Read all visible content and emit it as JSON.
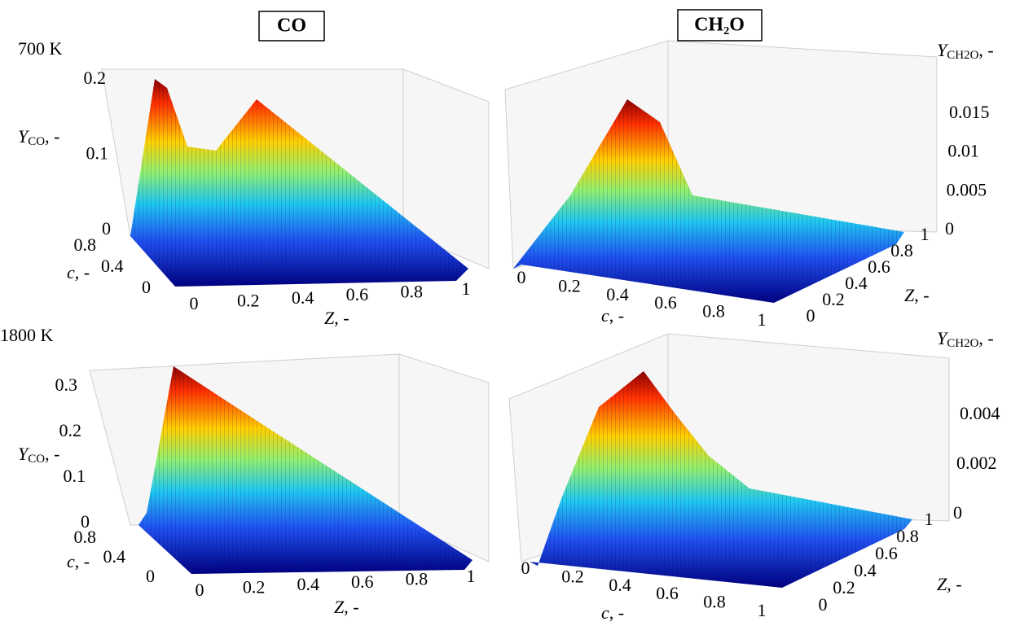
{
  "headers": [
    "CO",
    "CH₂O"
  ],
  "row_labels": [
    "700 K",
    "1800 K"
  ],
  "panels": [
    {
      "y_label": {
        "symbol": "Y",
        "subscript": "CO",
        "unit": ", -"
      },
      "y_ticks": [
        0,
        0.1,
        0.2
      ],
      "c_label": {
        "symbol": "c",
        "unit": ", -"
      },
      "c_ticks": [
        0,
        0.4,
        0.8
      ],
      "z_label": {
        "symbol": "Z",
        "unit": ", -"
      },
      "z_ticks": [
        0,
        0.2,
        0.4,
        0.6,
        0.8,
        1
      ]
    },
    {
      "y_label": {
        "symbol": "Y",
        "subscript": "CH2O",
        "unit": ", -"
      },
      "y_ticks": [
        0,
        0.005,
        0.01,
        0.015
      ],
      "c_label": {
        "symbol": "c",
        "unit": ", -"
      },
      "c_ticks": [
        0,
        0.2,
        0.4,
        0.6,
        0.8,
        1
      ],
      "z_label": {
        "symbol": "Z",
        "unit": ", -"
      },
      "z_ticks": [
        0,
        0.2,
        0.4,
        0.6,
        0.8,
        1
      ]
    },
    {
      "y_label": {
        "symbol": "Y",
        "subscript": "CO",
        "unit": ", -"
      },
      "y_ticks": [
        0,
        0.1,
        0.2,
        0.3
      ],
      "c_label": {
        "symbol": "c",
        "unit": ", -"
      },
      "c_ticks": [
        0,
        0.4,
        0.8
      ],
      "z_label": {
        "symbol": "Z",
        "unit": ", -"
      },
      "z_ticks": [
        0,
        0.2,
        0.4,
        0.6,
        0.8,
        1
      ]
    },
    {
      "y_label": {
        "symbol": "Y",
        "subscript": "CH2O",
        "unit": ", -"
      },
      "y_ticks": [
        0,
        0.002,
        0.004
      ],
      "c_label": {
        "symbol": "c",
        "unit": ", -"
      },
      "c_ticks": [
        0,
        0.2,
        0.4,
        0.6,
        0.8,
        1
      ],
      "z_label": {
        "symbol": "Z",
        "unit": ", -"
      },
      "z_ticks": [
        0,
        0.2,
        0.4,
        0.6,
        0.8,
        1
      ]
    }
  ]
}
